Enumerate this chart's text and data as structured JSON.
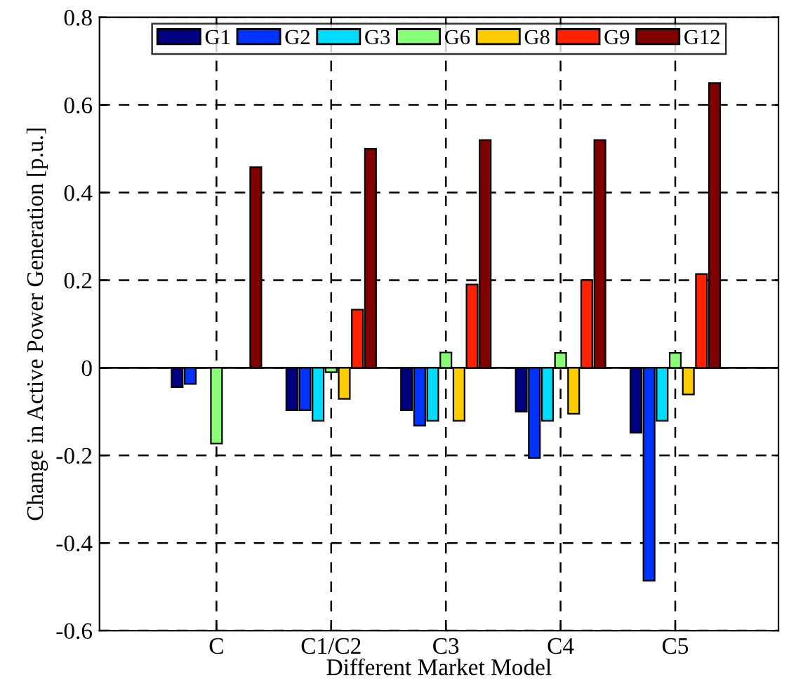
{
  "chart_data": {
    "type": "bar",
    "xlabel": "Different Market Model",
    "ylabel": "Change in Active Power Generation [p.u.]",
    "categories": [
      "C",
      "C1/C2",
      "C3",
      "C4",
      "C5"
    ],
    "series": [
      {
        "name": "G1",
        "color": "#000080",
        "values": [
          -0.044,
          -0.097,
          -0.097,
          -0.1,
          -0.148
        ]
      },
      {
        "name": "G2",
        "color": "#0033ff",
        "values": [
          -0.037,
          -0.097,
          -0.132,
          -0.206,
          -0.486
        ]
      },
      {
        "name": "G3",
        "color": "#00ddff",
        "values": [
          null,
          -0.121,
          -0.121,
          -0.121,
          -0.121
        ]
      },
      {
        "name": "G6",
        "color": "#88ff77",
        "values": [
          -0.173,
          -0.01,
          0.035,
          0.034,
          0.034
        ]
      },
      {
        "name": "G8",
        "color": "#ffcc00",
        "values": [
          null,
          -0.071,
          -0.121,
          -0.105,
          -0.061
        ]
      },
      {
        "name": "G9",
        "color": "#ff2200",
        "values": [
          null,
          0.133,
          0.19,
          0.2,
          0.214
        ]
      },
      {
        "name": "G12",
        "color": "#800000",
        "values": [
          0.458,
          0.5,
          0.52,
          0.52,
          0.65
        ]
      }
    ],
    "ylim": [
      -0.6,
      0.8
    ],
    "yticks": [
      -0.6,
      -0.4,
      -0.2,
      0,
      0.2,
      0.4,
      0.6,
      0.8
    ],
    "grid": true,
    "legend": "top"
  }
}
